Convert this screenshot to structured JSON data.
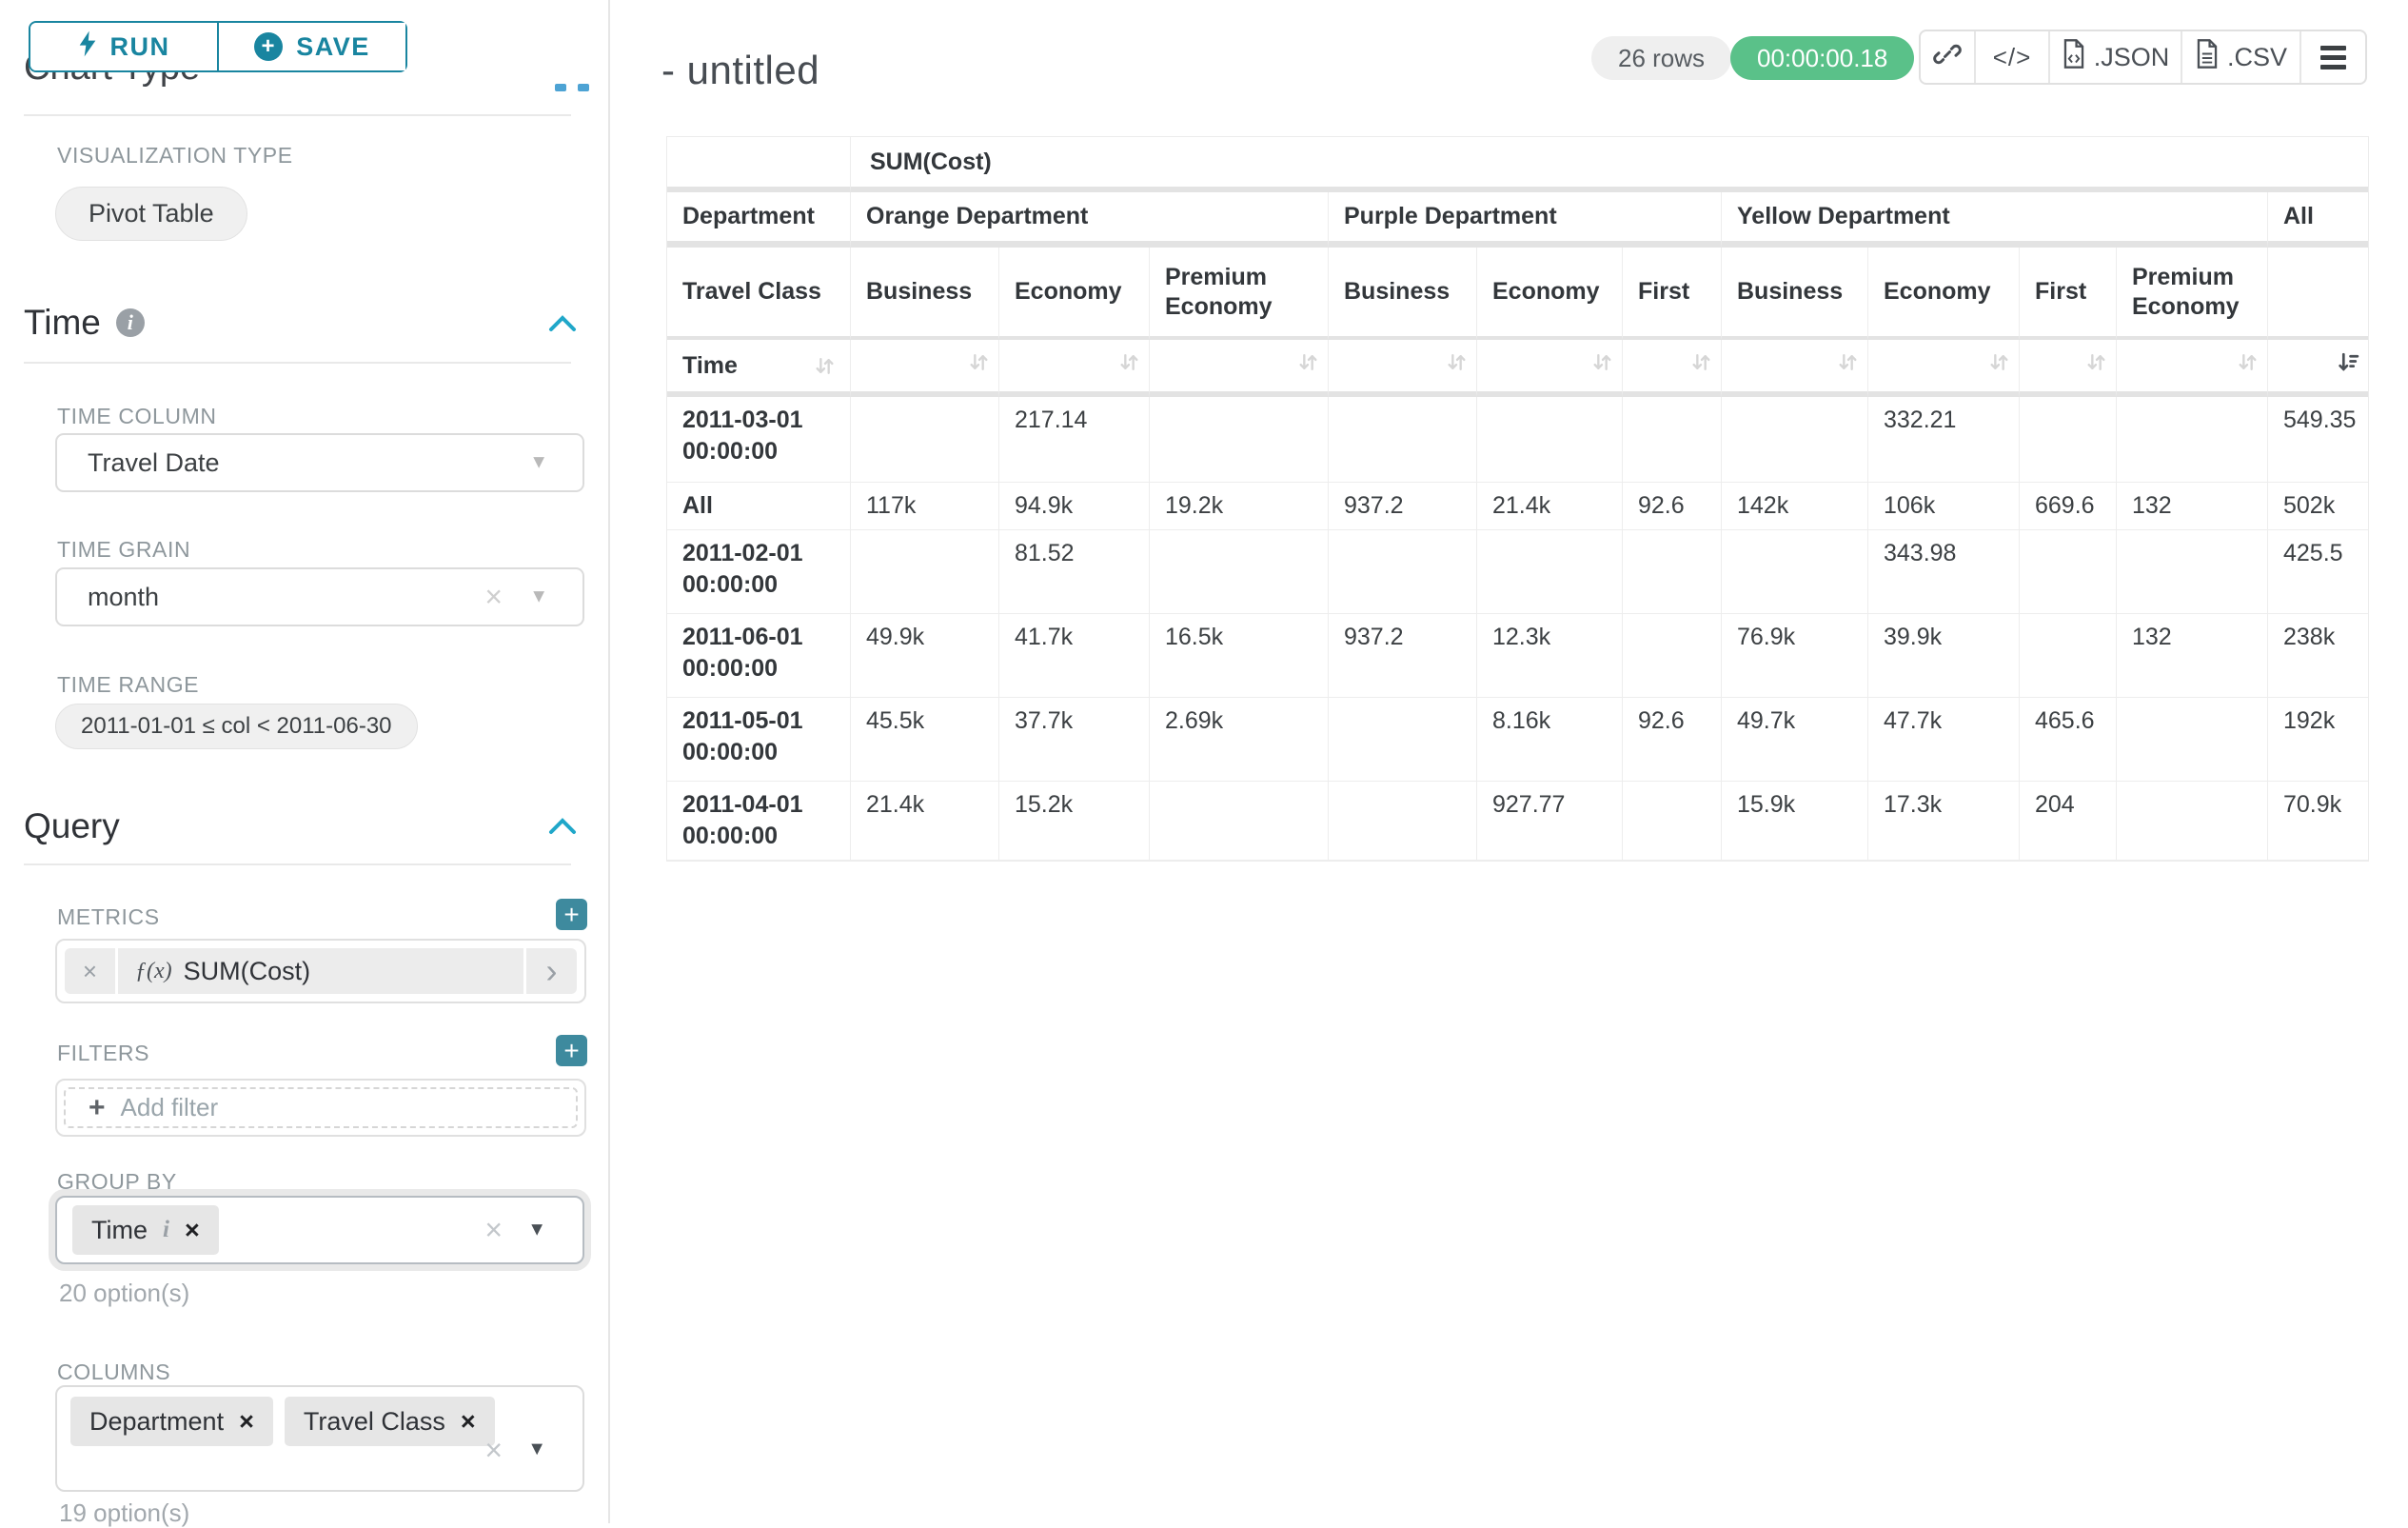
{
  "glyphs": {
    "caret": "▼",
    "clear": "×",
    "chevron_right": "›",
    "plus": "+",
    "info": "i"
  },
  "toolbar": {
    "run": "RUN",
    "save": "SAVE"
  },
  "panel": {
    "chart_type_heading": "Chart Type",
    "viz_type_label": "VISUALIZATION TYPE",
    "viz_type_value": "Pivot Table",
    "time": {
      "heading": "Time",
      "column_label": "TIME COLUMN",
      "column_value": "Travel Date",
      "grain_label": "TIME GRAIN",
      "grain_value": "month",
      "range_label": "TIME RANGE",
      "range_value": "2011-01-01 ≤ col < 2011-06-30"
    },
    "query": {
      "heading": "Query",
      "metrics_label": "METRICS",
      "metric_fx": "ƒ(x)",
      "metric_name": "SUM(Cost)",
      "filters_label": "FILTERS",
      "add_filter_label": "Add filter",
      "group_by_label": "GROUP BY",
      "group_by_values": [
        "Time"
      ],
      "group_by_hint": "20 option(s)",
      "columns_label": "COLUMNS",
      "columns_values": [
        "Department",
        "Travel Class"
      ],
      "columns_hint": "19 option(s)"
    }
  },
  "header": {
    "title": "- untitled",
    "rows_badge": "26 rows",
    "timer": "00:00:00.18",
    "code_glyph": "</>",
    "json_label": ".JSON",
    "csv_label": ".CSV"
  },
  "chart_data": {
    "type": "table",
    "title": "SUM(Cost)",
    "corner": {
      "department": "Department",
      "travel_class": "Travel Class",
      "time": "Time"
    },
    "column_groups": [
      {
        "name": "Orange Department",
        "columns": [
          "Business",
          "Economy",
          "Premium Economy"
        ]
      },
      {
        "name": "Purple Department",
        "columns": [
          "Business",
          "Economy",
          "First"
        ]
      },
      {
        "name": "Yellow Department",
        "columns": [
          "Business",
          "Economy",
          "First",
          "Premium Economy"
        ]
      },
      {
        "name": "All",
        "columns": [
          ""
        ]
      }
    ],
    "sorted_column": "All",
    "sort_direction": "desc",
    "rows": [
      {
        "label": "2011-03-01 00:00:00",
        "values": [
          "",
          "217.14",
          "",
          "",
          "",
          "",
          "",
          "332.21",
          "",
          "",
          "549.35"
        ]
      },
      {
        "label": "All",
        "values": [
          "117k",
          "94.9k",
          "19.2k",
          "937.2",
          "21.4k",
          "92.6",
          "142k",
          "106k",
          "669.6",
          "132",
          "502k"
        ]
      },
      {
        "label": "2011-02-01 00:00:00",
        "values": [
          "",
          "81.52",
          "",
          "",
          "",
          "",
          "",
          "343.98",
          "",
          "",
          "425.5"
        ]
      },
      {
        "label": "2011-06-01 00:00:00",
        "values": [
          "49.9k",
          "41.7k",
          "16.5k",
          "937.2",
          "12.3k",
          "",
          "76.9k",
          "39.9k",
          "",
          "132",
          "238k"
        ]
      },
      {
        "label": "2011-05-01 00:00:00",
        "values": [
          "45.5k",
          "37.7k",
          "2.69k",
          "",
          "8.16k",
          "92.6",
          "49.7k",
          "47.7k",
          "465.6",
          "",
          "192k"
        ]
      },
      {
        "label": "2011-04-01 00:00:00",
        "values": [
          "21.4k",
          "15.2k",
          "",
          "",
          "927.77",
          "",
          "15.9k",
          "17.3k",
          "204",
          "",
          "70.9k"
        ]
      }
    ]
  }
}
